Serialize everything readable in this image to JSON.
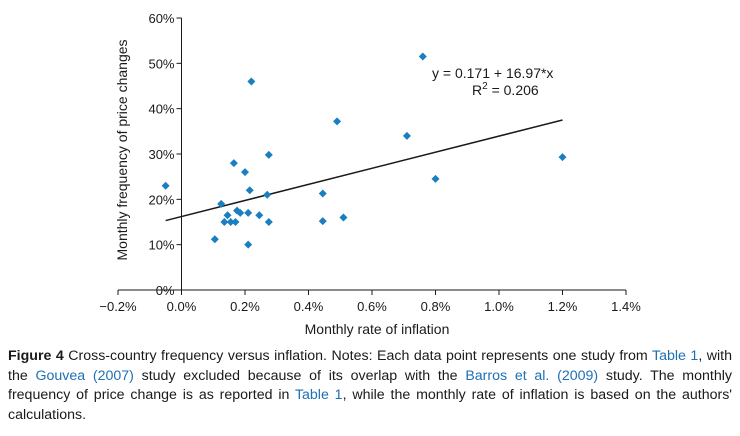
{
  "chart_data": {
    "type": "scatter",
    "xlabel": "Monthly rate of inflation",
    "ylabel": "Monthly frequency of price changes",
    "xlim": [
      -0.2,
      1.4
    ],
    "ylim": [
      0,
      60
    ],
    "x_ticks": [
      "−0.2%",
      "0.0%",
      "0.2%",
      "0.4%",
      "0.6%",
      "0.8%",
      "1.0%",
      "1.2%",
      "1.4%"
    ],
    "y_ticks": [
      "0%",
      "10%",
      "20%",
      "30%",
      "40%",
      "50%",
      "60%"
    ],
    "marker_color": "#1a7fc1",
    "points": [
      {
        "x": -0.05,
        "y": 23
      },
      {
        "x": 0.105,
        "y": 11.2
      },
      {
        "x": 0.125,
        "y": 19
      },
      {
        "x": 0.135,
        "y": 15
      },
      {
        "x": 0.145,
        "y": 16.5
      },
      {
        "x": 0.155,
        "y": 15
      },
      {
        "x": 0.165,
        "y": 28
      },
      {
        "x": 0.17,
        "y": 15
      },
      {
        "x": 0.175,
        "y": 17.5
      },
      {
        "x": 0.185,
        "y": 17
      },
      {
        "x": 0.2,
        "y": 26
      },
      {
        "x": 0.21,
        "y": 10
      },
      {
        "x": 0.21,
        "y": 17
      },
      {
        "x": 0.215,
        "y": 22
      },
      {
        "x": 0.22,
        "y": 46
      },
      {
        "x": 0.245,
        "y": 16.5
      },
      {
        "x": 0.27,
        "y": 21
      },
      {
        "x": 0.275,
        "y": 15
      },
      {
        "x": 0.275,
        "y": 29.8
      },
      {
        "x": 0.445,
        "y": 21.3
      },
      {
        "x": 0.445,
        "y": 15.2
      },
      {
        "x": 0.49,
        "y": 37.2
      },
      {
        "x": 0.51,
        "y": 16
      },
      {
        "x": 0.71,
        "y": 34
      },
      {
        "x": 0.76,
        "y": 51.5
      },
      {
        "x": 0.8,
        "y": 24.5
      },
      {
        "x": 1.2,
        "y": 29.3
      }
    ],
    "trendline": {
      "intercept": 16.2,
      "x_start": -0.05,
      "x_end": 1.2,
      "y_end": 37.5
    },
    "equation": "y = 0.171 + 16.97*x",
    "r2_label": "R",
    "r2_sup": "2",
    "r2_value": " = 0.206"
  },
  "caption": {
    "fig_label": "Figure 4",
    "t1": " Cross-country frequency versus inflation. Notes: Each data point represents one study from ",
    "ref1": "Table 1",
    "t2": ", with the ",
    "ref2": "Gouvea (2007)",
    "t3": " study excluded because of its overlap with the ",
    "ref3": "Barros et al. (2009)",
    "t4": " study. The monthly frequency of price change is as reported in ",
    "ref4": "Table 1",
    "t5": ", while the monthly rate of inflation is based on the authors' calculations."
  }
}
